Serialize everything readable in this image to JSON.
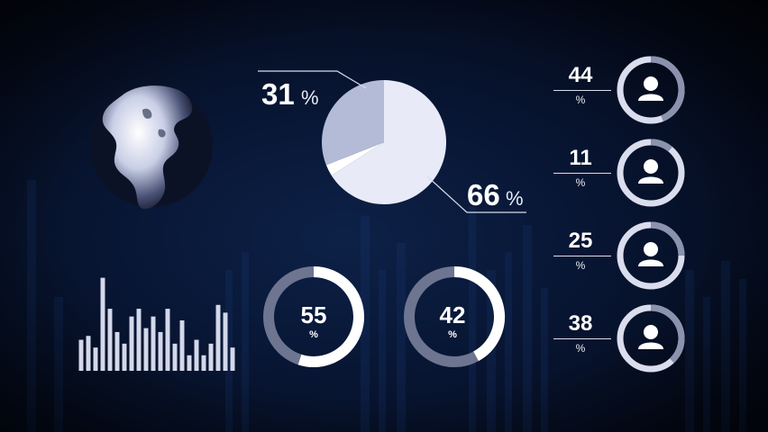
{
  "chart_data": [
    {
      "type": "pie",
      "values": [
        31,
        66,
        3
      ],
      "labels": [
        "31",
        "66",
        ""
      ],
      "unit": "%",
      "colors": [
        "#b4bbd6",
        "#e8eaf8",
        "#ffffff"
      ]
    },
    {
      "type": "bar",
      "values": [
        4,
        4.5,
        3,
        12,
        8,
        5,
        3.5,
        7,
        8,
        5.5,
        7,
        5,
        8,
        3.5,
        6.5,
        2,
        4,
        2,
        3.5,
        8.5,
        7.5,
        3
      ],
      "ylim": [
        0,
        13
      ]
    },
    {
      "type": "donut",
      "value": 55,
      "label": "55",
      "unit": "%"
    },
    {
      "type": "donut",
      "value": 42,
      "label": "42",
      "unit": "%"
    },
    {
      "type": "rings",
      "items": [
        {
          "label": "44",
          "unit": "%",
          "value": 44
        },
        {
          "label": "11",
          "unit": "%",
          "value": 11
        },
        {
          "label": "25",
          "unit": "%",
          "value": 25
        },
        {
          "label": "38",
          "unit": "%",
          "value": 38
        }
      ]
    }
  ],
  "icons": {
    "globe": "globe-icon",
    "user": "user-icon"
  }
}
